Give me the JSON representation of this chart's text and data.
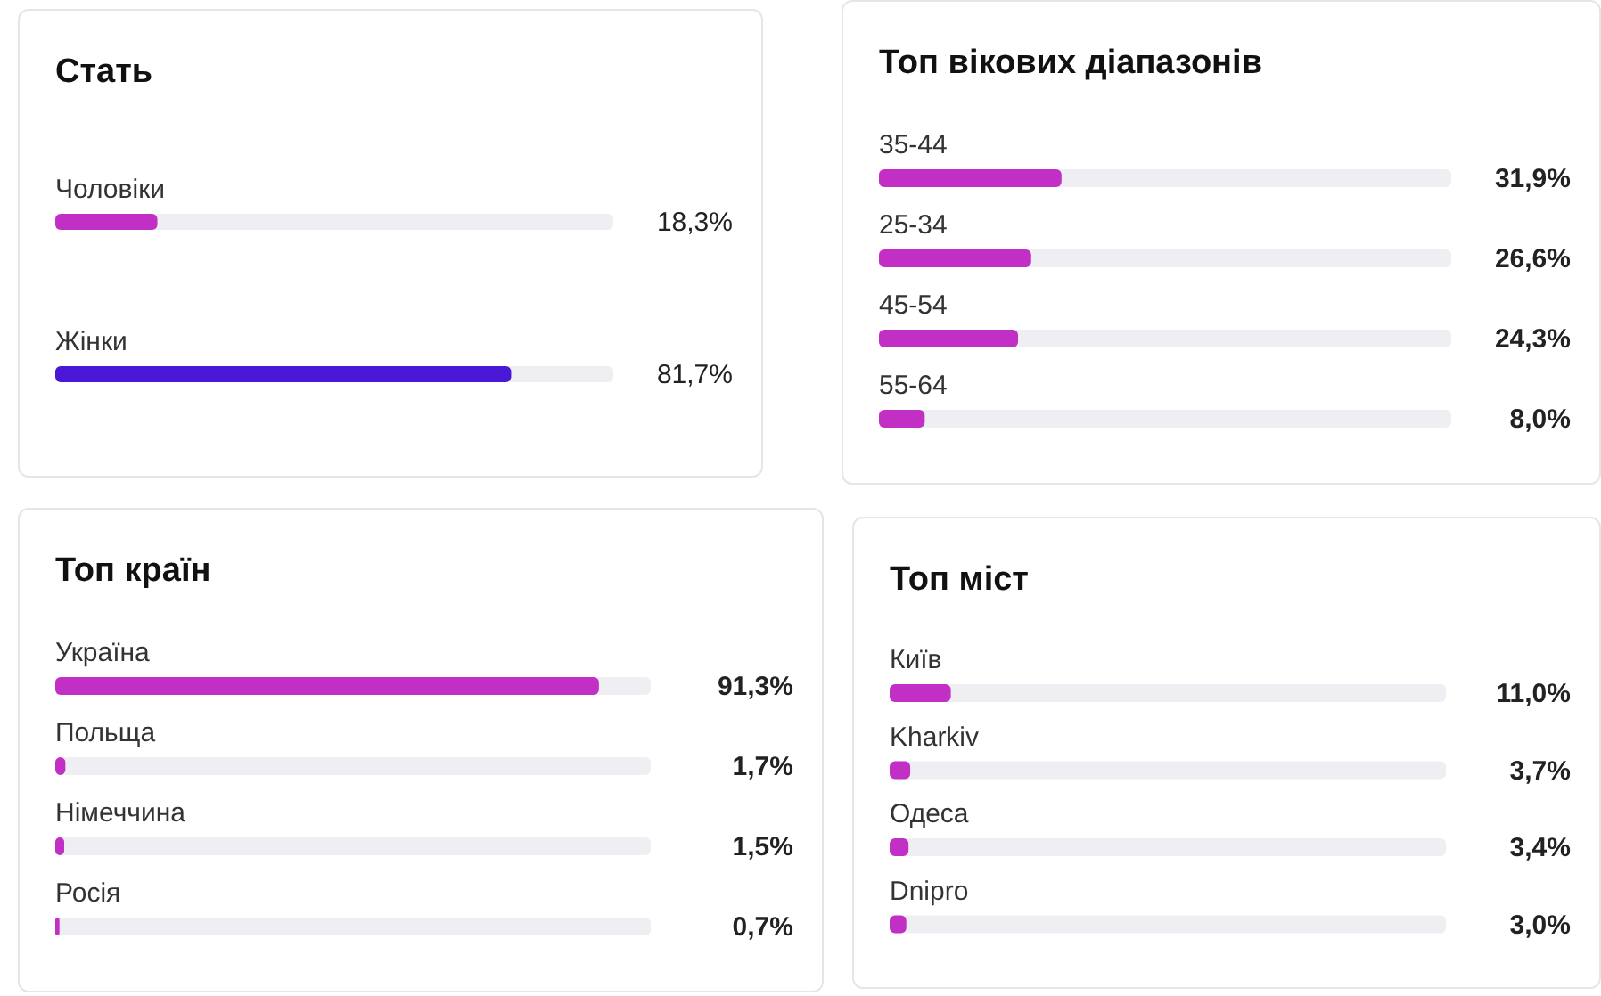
{
  "chart_data": [
    {
      "type": "bar",
      "orientation": "horizontal",
      "title": "Стать",
      "categories": [
        "Чоловіки",
        "Жінки"
      ],
      "values": [
        18.3,
        81.7
      ],
      "colors": [
        "#c22fc4",
        "#4a17d6"
      ],
      "xlim": [
        0,
        100
      ],
      "value_labels": [
        "18,3%",
        "81,7%"
      ],
      "tick_labels": "y"
    },
    {
      "type": "bar",
      "orientation": "horizontal",
      "title": "Топ вікових діапазонів",
      "categories": [
        "35-44",
        "25-34",
        "45-54",
        "55-64"
      ],
      "values": [
        31.9,
        26.6,
        24.3,
        8.0
      ],
      "colors": [
        "#c22fc4",
        "#c22fc4",
        "#c22fc4",
        "#c22fc4"
      ],
      "xlim": [
        0,
        100
      ],
      "value_labels": [
        "31,9%",
        "26,6%",
        "24,3%",
        "8,0%"
      ],
      "tick_labels": "y"
    },
    {
      "type": "bar",
      "orientation": "horizontal",
      "title": "Топ країн",
      "categories": [
        "Україна",
        "Польща",
        "Німеччина",
        "Росія"
      ],
      "values": [
        91.3,
        1.7,
        1.5,
        0.7
      ],
      "colors": [
        "#c22fc4",
        "#c22fc4",
        "#c22fc4",
        "#c22fc4"
      ],
      "xlim": [
        0,
        100
      ],
      "value_labels": [
        "91,3%",
        "1,7%",
        "1,5%",
        "0,7%"
      ],
      "tick_labels": "y"
    },
    {
      "type": "bar",
      "orientation": "horizontal",
      "title": "Топ міст",
      "categories": [
        "Київ",
        "Kharkiv",
        "Одеса",
        "Dnipro"
      ],
      "values": [
        11.0,
        3.7,
        3.4,
        3.0
      ],
      "colors": [
        "#c22fc4",
        "#c22fc4",
        "#c22fc4",
        "#c22fc4"
      ],
      "xlim": [
        0,
        100
      ],
      "value_labels": [
        "11,0%",
        "3,7%",
        "3,4%",
        "3,0%"
      ],
      "tick_labels": "y"
    }
  ]
}
